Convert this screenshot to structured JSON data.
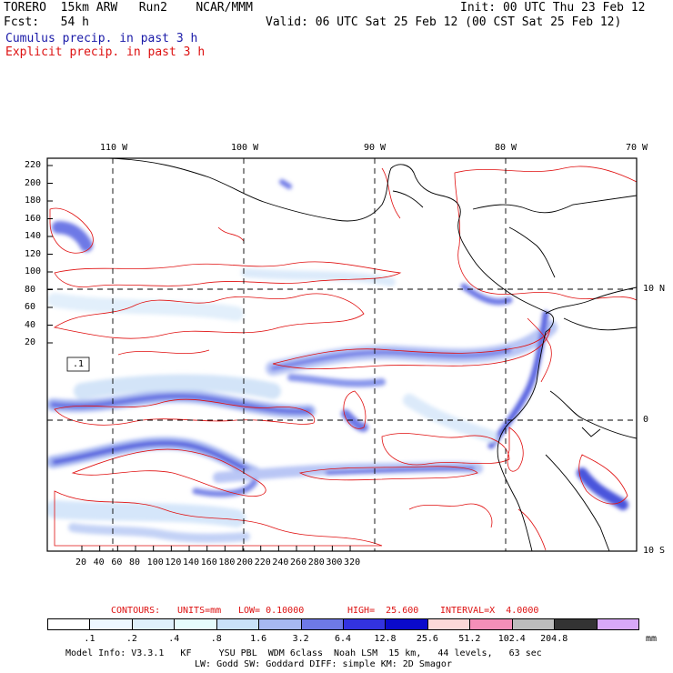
{
  "header": {
    "line1_left": "TORERO  15km ARW   Run2    NCAR/MMM",
    "line1_right": "Init: 00 UTC Thu 23 Feb 12",
    "line2_left": "Fcst:   54 h",
    "line2_right": "Valid: 06 UTC Sat 25 Feb 12 (00 CST Sat 25 Feb 12)",
    "legend_cumulus": "Cumulus precip. in past 3 h",
    "legend_explicit": "Explicit precip. in past 3 h"
  },
  "map": {
    "lon_labels": [
      "110 W",
      "100 W",
      "90 W",
      "80 W",
      "70 W"
    ],
    "lat_labels": [
      "10 N",
      "0",
      "10 S"
    ],
    "y_ticks": [
      "220",
      "200",
      "180",
      "160",
      "140",
      "120",
      "100",
      "80",
      "60",
      "40",
      "20"
    ],
    "x_ticks": [
      "20",
      "40",
      "60",
      "80",
      "100",
      "120",
      "140",
      "160",
      "180",
      "200",
      "220",
      "240",
      "260",
      "280",
      "300",
      "320"
    ],
    "contour_label": ".1"
  },
  "contours_line": {
    "label": "CONTOURS:",
    "units": "UNITS=mm",
    "low": "LOW= 0.10000",
    "high": "HIGH=  25.600",
    "interval": "INTERVAL=X  4.0000"
  },
  "colorbar": {
    "labels": [
      ".1",
      ".2",
      ".4",
      ".8",
      "1.6",
      "3.2",
      "6.4",
      "12.8",
      "25.6",
      "51.2",
      "102.4",
      "204.8"
    ],
    "unit": "mm",
    "colors": [
      "#ffffff",
      "#eef7ff",
      "#dff0fb",
      "#e6fcfc",
      "#c9e1f8",
      "#a7b8f2",
      "#6e79e6",
      "#3333e0",
      "#0a0acc",
      "#fcd8d8",
      "#f48fb8",
      "#bdbdbd",
      "#333333",
      "#d8a8f8"
    ]
  },
  "footer": {
    "line1": "Model Info: V3.3.1   KF     YSU PBL  WDM 6class  Noah LSM  15 km,   44 levels,   63 sec",
    "line2": "LW: Godd SW: Goddard DIFF: simple KM: 2D Smagor"
  }
}
